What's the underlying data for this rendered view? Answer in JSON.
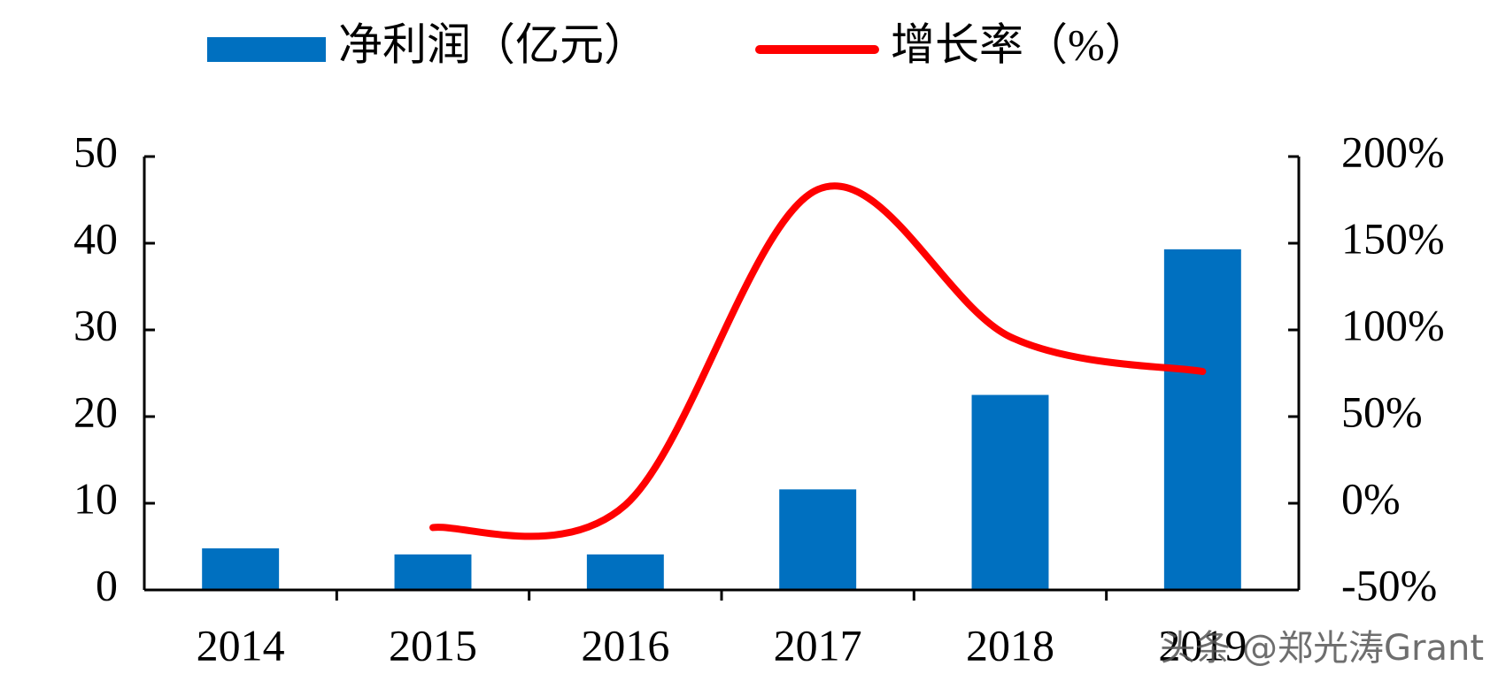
{
  "chart_data": {
    "type": "bar-line",
    "categories": [
      "2014",
      "2015",
      "2016",
      "2017",
      "2018",
      "2019"
    ],
    "series": [
      {
        "name": "净利润（亿元）",
        "type": "bar",
        "color": "#0070c0",
        "values": [
          4.8,
          4.1,
          4.1,
          11.6,
          22.5,
          39.3
        ]
      },
      {
        "name": "增长率（%）",
        "type": "line",
        "axis": "y2",
        "color": "#ff0000",
        "values": [
          null,
          -14,
          -1,
          181,
          96,
          76
        ]
      }
    ],
    "ylim": [
      0,
      50
    ],
    "yticks": [
      0,
      10,
      20,
      30,
      40,
      50
    ],
    "y2lim": [
      -50,
      200
    ],
    "y2ticks": [
      {
        "value": -50,
        "label": "-50%"
      },
      {
        "value": 0,
        "label": "0%"
      },
      {
        "value": 50,
        "label": "50%"
      },
      {
        "value": 100,
        "label": "100%"
      },
      {
        "value": 150,
        "label": "150%"
      },
      {
        "value": 200,
        "label": "200%"
      }
    ],
    "grid": false,
    "legend": "top",
    "watermark": "头条 @郑光涛Grant"
  }
}
